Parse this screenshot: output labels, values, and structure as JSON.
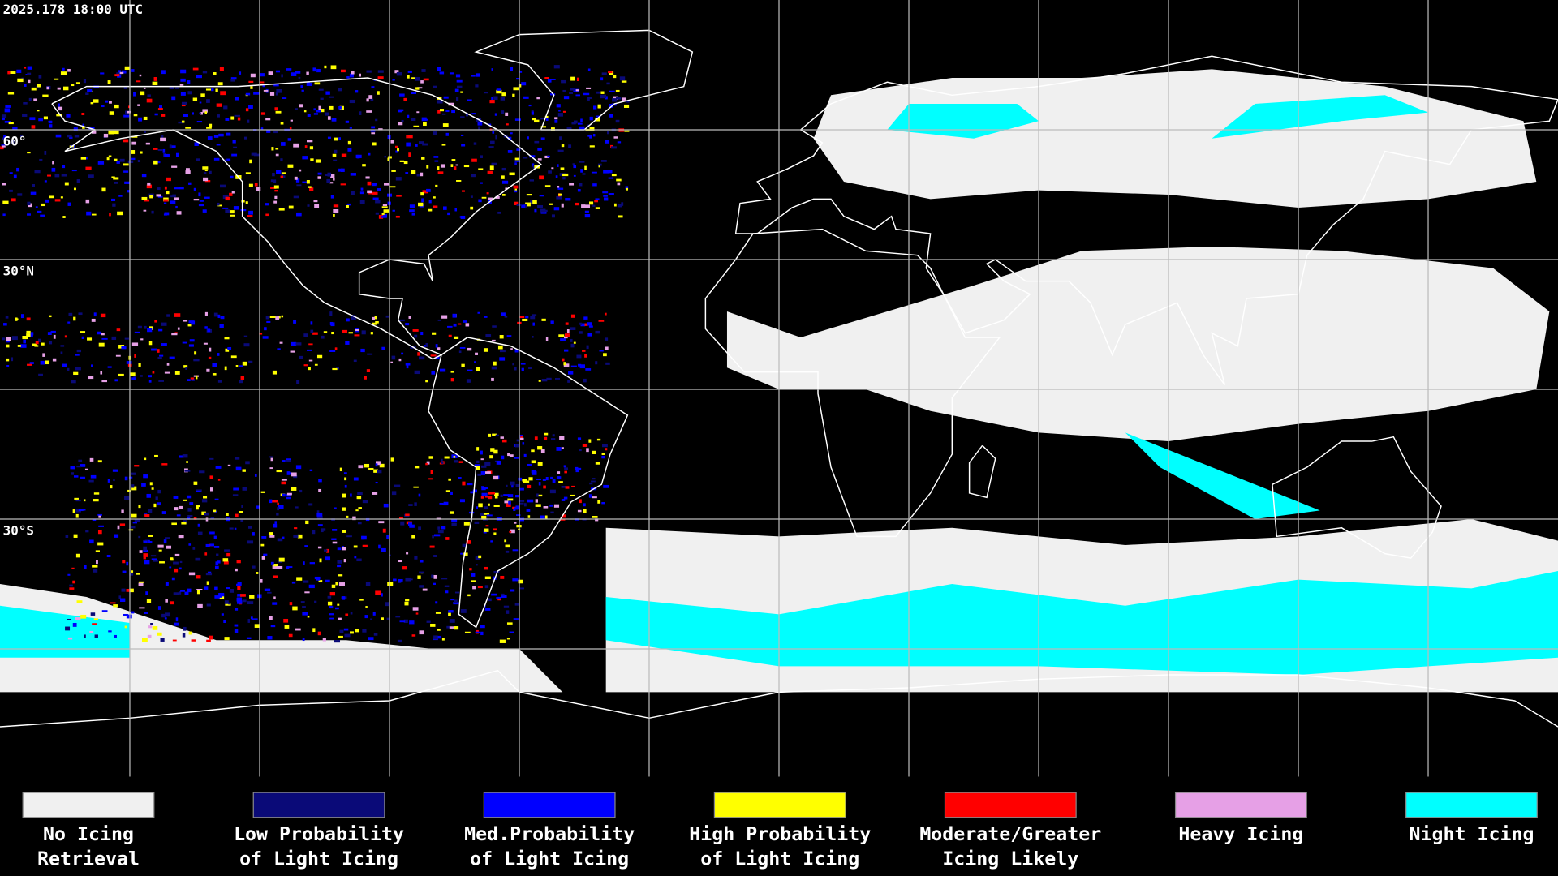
{
  "header": {
    "timestamp": "2025.178 18:00 UTC"
  },
  "latitude_labels": [
    "60°",
    "30°N",
    "30°S"
  ],
  "legend": [
    {
      "label": [
        "No Icing",
        "Retrieval"
      ],
      "color": "#f0f0f0"
    },
    {
      "label": [
        "Low Probability",
        "of Light Icing"
      ],
      "color": "#0a0a78"
    },
    {
      "label": [
        "Med.Probability",
        "of Light Icing"
      ],
      "color": "#0000ff"
    },
    {
      "label": [
        "High Probability",
        "of Light Icing"
      ],
      "color": "#ffff00"
    },
    {
      "label": [
        "Moderate/Greater",
        "Icing Likely"
      ],
      "color": "#ff0000"
    },
    {
      "label": [
        "Heavy Icing"
      ],
      "color": "#e6a0e6"
    },
    {
      "label": [
        "Night Icing"
      ],
      "color": "#00ffff"
    }
  ]
}
